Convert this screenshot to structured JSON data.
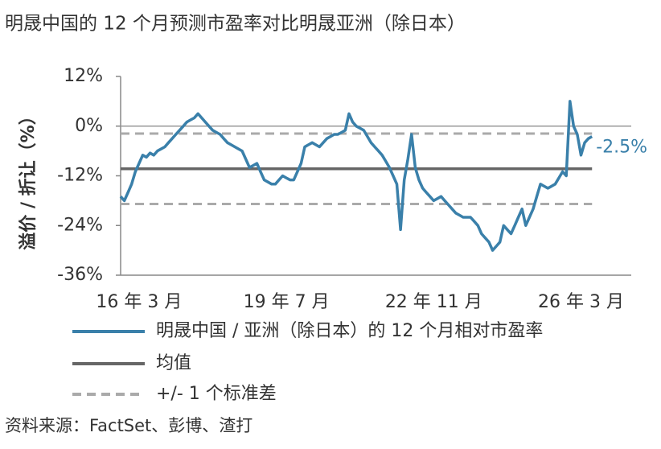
{
  "chart_data": {
    "type": "line",
    "title": "明晟中国的 12 个月预测市盈率对比明晟亚洲（除日本）",
    "ylabel": "溢价 / 折让（%）",
    "source": "资料来源：FactSet、彭博、渣打",
    "ylim": [
      -36,
      12
    ],
    "yticks": [
      {
        "value": 12,
        "label": "12%"
      },
      {
        "value": 0,
        "label": "0%"
      },
      {
        "value": -12,
        "label": "-12%"
      },
      {
        "value": -24,
        "label": "-24%"
      },
      {
        "value": -36,
        "label": "-36%"
      }
    ],
    "zero_line": true,
    "categories": [
      null,
      null,
      null,
      null,
      null,
      "16 年 3 月",
      null,
      null,
      null,
      null,
      null,
      null,
      null,
      null,
      null,
      null,
      null,
      null,
      null,
      null,
      null,
      null,
      null,
      null,
      null,
      null,
      null,
      null,
      null,
      null,
      null,
      null,
      null,
      null,
      null,
      null,
      null,
      null,
      null,
      null,
      null,
      null,
      null,
      null,
      null,
      "19 年 7 月",
      null,
      null,
      null,
      null,
      null,
      null,
      null,
      null,
      null,
      null,
      null,
      null,
      null,
      null,
      null,
      null,
      null,
      null,
      null,
      null,
      null,
      null,
      null,
      null,
      null,
      null,
      null,
      null,
      null,
      null,
      null,
      null,
      null,
      null,
      null,
      null,
      null,
      null,
      null,
      "22 年 11 月",
      null,
      null,
      null,
      null,
      null,
      null,
      null,
      null,
      null,
      null,
      null,
      null,
      null,
      null,
      null,
      null,
      null,
      null,
      null,
      null,
      null,
      null,
      null,
      null,
      null,
      null,
      null,
      null,
      null,
      null,
      null,
      null,
      null,
      null,
      null,
      null,
      null,
      null,
      null,
      "26 年 3 月",
      null,
      null,
      null
    ],
    "series": [
      {
        "name": "明晟中国 / 亚洲（除日本）的 12 个月相对市盈率",
        "color": "#3a80aa",
        "values": [
          -17,
          -18,
          -16,
          -14,
          -11,
          -9,
          -7,
          -7.5,
          -6.5,
          -7,
          -6,
          -5.5,
          -5,
          -4,
          -3,
          -2,
          -1,
          0,
          1,
          1.5,
          2,
          3,
          2,
          1,
          0,
          -1,
          -1.5,
          -2,
          -3,
          -4,
          -4.5,
          -5,
          -5.5,
          -6,
          -8,
          -10,
          -9.5,
          -9,
          -11,
          -13,
          -13.5,
          -14,
          -14,
          -13,
          -12,
          -12.5,
          -13,
          -13,
          -11,
          -9,
          -5,
          -4.5,
          -4,
          -4.5,
          -5,
          -4,
          -3,
          -2.5,
          -2,
          -2,
          -1.5,
          -1,
          3,
          1,
          0,
          -0.5,
          -1,
          -2.5,
          -4,
          -5,
          -6,
          -7,
          -8.5,
          -10,
          -12,
          -14,
          -25,
          -13,
          -8,
          -2,
          -10,
          -13,
          -15,
          -16,
          -17,
          -18,
          -17.5,
          -17,
          -18,
          -19,
          -20,
          -21,
          -21.5,
          -22,
          -22,
          -22,
          -23,
          -24,
          -26,
          -27,
          -28,
          -30,
          -29,
          -28,
          -24,
          -25,
          -26,
          -24,
          -22,
          -20,
          -24,
          -22,
          -20,
          -17,
          -14,
          -14.5,
          -15,
          -14.5,
          -14,
          -12.5,
          -11,
          -12,
          6,
          0,
          -2,
          -7,
          -4,
          -3,
          -2.5
        ],
        "value_labels": [
          null,
          null,
          null,
          null,
          null,
          null,
          null,
          null,
          null,
          null,
          null,
          null,
          null,
          null,
          null,
          null,
          null,
          null,
          null,
          null,
          null,
          null,
          null,
          null,
          null,
          null,
          null,
          null,
          null,
          null,
          null,
          null,
          null,
          null,
          null,
          null,
          null,
          null,
          null,
          null,
          null,
          null,
          null,
          null,
          null,
          null,
          null,
          null,
          null,
          null,
          null,
          null,
          null,
          null,
          null,
          null,
          null,
          null,
          null,
          null,
          null,
          null,
          null,
          null,
          null,
          null,
          null,
          null,
          null,
          null,
          null,
          null,
          null,
          null,
          null,
          null,
          null,
          null,
          null,
          null,
          null,
          null,
          null,
          null,
          null,
          null,
          null,
          null,
          null,
          null,
          null,
          null,
          null,
          null,
          null,
          null,
          null,
          null,
          null,
          null,
          null,
          null,
          null,
          null,
          null,
          null,
          null,
          null,
          null,
          null,
          null,
          null,
          null,
          null,
          null,
          null,
          null,
          null,
          null,
          null,
          null,
          null,
          null,
          null,
          null,
          null,
          null,
          null,
          "-2.5%"
        ]
      }
    ],
    "mean_line": {
      "name": "均值",
      "value": -10.3,
      "color": "#666666"
    },
    "band_lines": {
      "name": "+/- 1 个标准差",
      "values": [
        -1.8,
        -18.8
      ],
      "color": "#aaaaaa"
    }
  }
}
